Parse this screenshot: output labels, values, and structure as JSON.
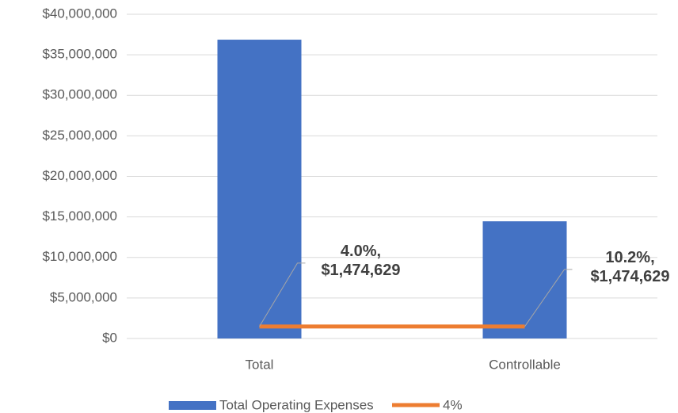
{
  "chart_data": {
    "type": "bar",
    "categories": [
      "Total",
      "Controllable"
    ],
    "series": [
      {
        "name": "Total Operating Expenses",
        "type": "bar",
        "color": "#4472c4",
        "values": [
          36865725,
          14457147
        ]
      },
      {
        "name": "4%",
        "type": "line",
        "color": "#ed7d31",
        "values": [
          1474629,
          1474629
        ],
        "value_labels": [
          "4.0%, $1,474,629",
          "10.2%, $1,474,629"
        ]
      }
    ],
    "ylim": [
      0,
      40000000
    ],
    "yticks": [
      {
        "value": 0,
        "label": "$0"
      },
      {
        "value": 5000000,
        "label": "$5,000,000"
      },
      {
        "value": 10000000,
        "label": "$10,000,000"
      },
      {
        "value": 15000000,
        "label": "$15,000,000"
      },
      {
        "value": 20000000,
        "label": "$20,000,000"
      },
      {
        "value": 25000000,
        "label": "$25,000,000"
      },
      {
        "value": 30000000,
        "label": "$30,000,000"
      },
      {
        "value": 35000000,
        "label": "$35,000,000"
      },
      {
        "value": 40000000,
        "label": "$40,000,000"
      }
    ],
    "grid": true,
    "legend": "bottom"
  }
}
